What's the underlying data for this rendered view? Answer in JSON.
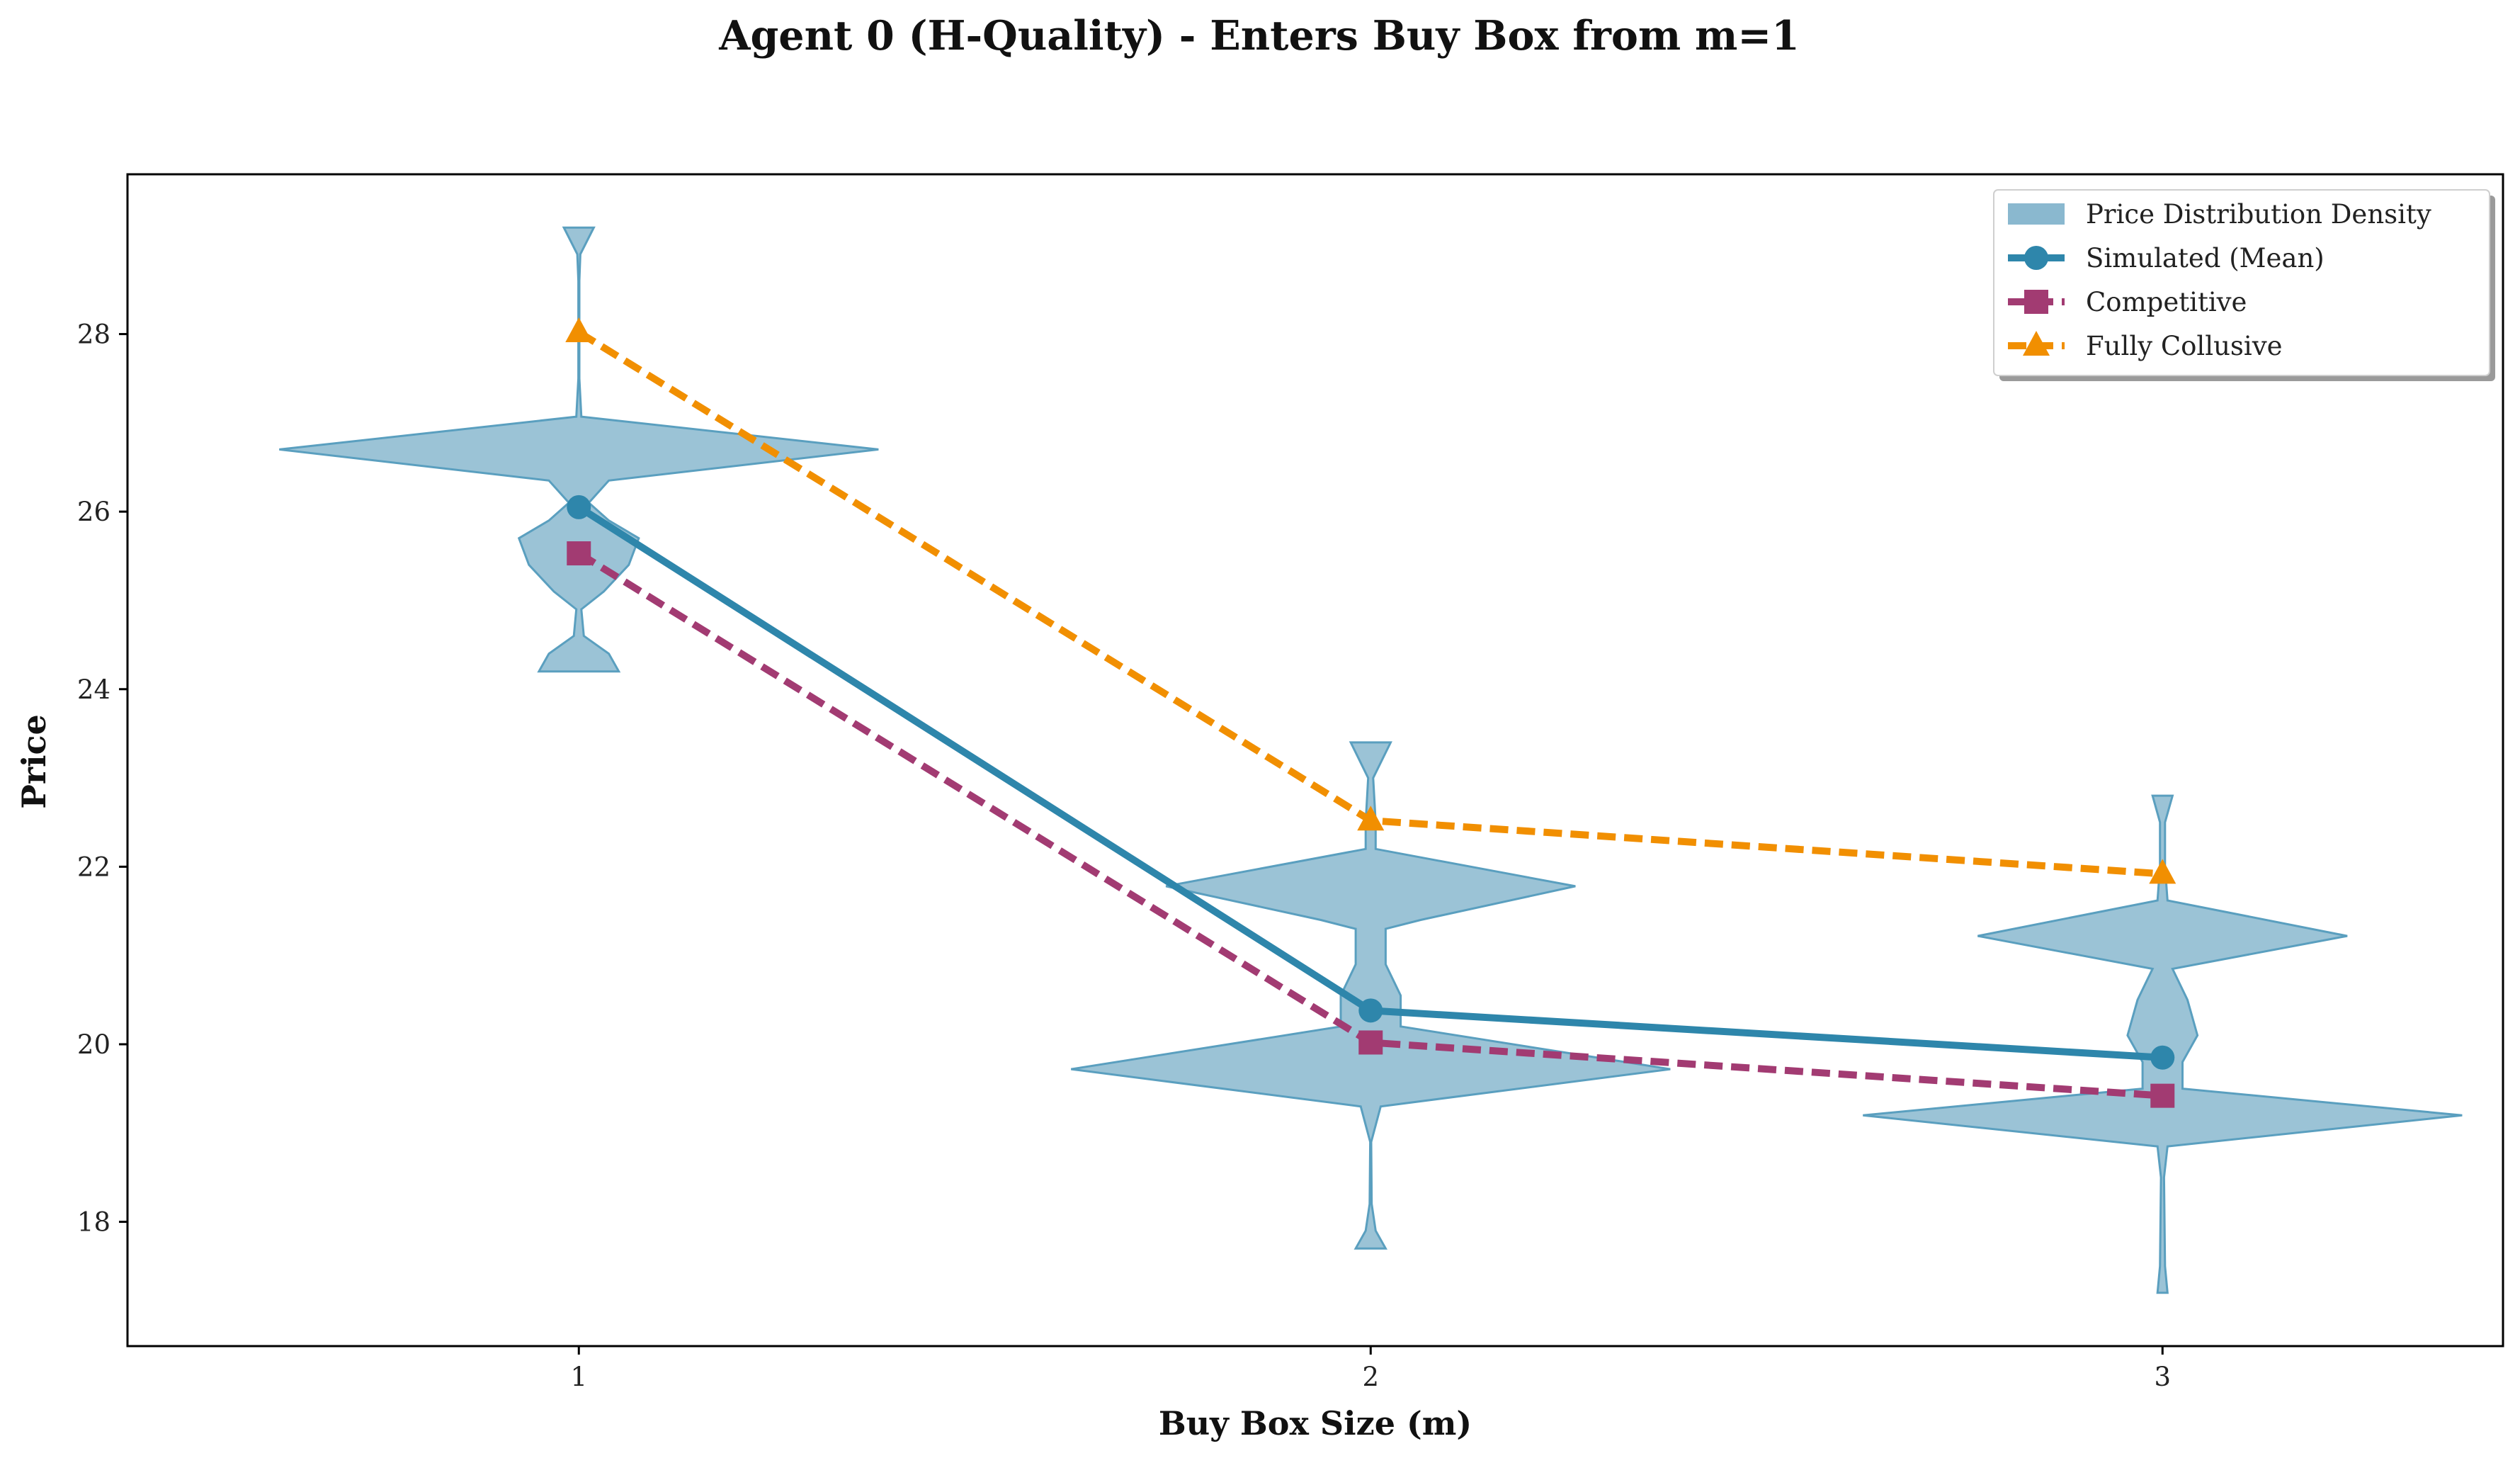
{
  "chart_data": {
    "type": "line",
    "title": "Agent 0 (H-Quality) - Enters Buy Box from m=1",
    "xlabel": "Buy Box Size (m)",
    "ylabel": "Price",
    "x": [
      1,
      2,
      3
    ],
    "x_tick_labels": [
      "1",
      "2",
      "3"
    ],
    "xlim": [
      0.43,
      3.43
    ],
    "ylim": [
      16.6,
      29.8
    ],
    "y_ticks": [
      18,
      20,
      22,
      24,
      26,
      28
    ],
    "y_tick_labels": [
      "18",
      "20",
      "22",
      "24",
      "26",
      "28"
    ],
    "grid": false,
    "legend_position": "top-right",
    "series": [
      {
        "name": "Simulated (Mean)",
        "values": [
          26.05,
          20.38,
          19.85
        ],
        "color": "#2e86ab",
        "marker": "circle",
        "linestyle": "solid"
      },
      {
        "name": "Competitive",
        "values": [
          25.53,
          20.02,
          19.42
        ],
        "color": "#a23b72",
        "marker": "square",
        "linestyle": "dashed"
      },
      {
        "name": "Fully Collusive",
        "values": [
          28.02,
          22.52,
          21.92
        ],
        "color": "#f18f01",
        "marker": "triangle",
        "linestyle": "dashed"
      }
    ],
    "violins": {
      "name": "Price Distribution Density",
      "color": "#8ab8cf",
      "edge_color": "#5a9fbf",
      "items": [
        {
          "x": 1,
          "min": 24.2,
          "max": 29.2,
          "profile": [
            [
              24.2,
              0.08
            ],
            [
              24.4,
              0.06
            ],
            [
              24.6,
              0.01
            ],
            [
              24.9,
              0.005
            ],
            [
              25.1,
              0.05
            ],
            [
              25.4,
              0.1
            ],
            [
              25.7,
              0.12
            ],
            [
              25.9,
              0.06
            ],
            [
              26.1,
              0.02
            ],
            [
              26.35,
              0.06
            ],
            [
              26.7,
              0.6
            ],
            [
              27.07,
              0.005
            ],
            [
              27.5,
              0.001
            ],
            [
              28.6,
              0.001
            ],
            [
              28.9,
              0.003
            ],
            [
              29.2,
              0.03
            ]
          ]
        },
        {
          "x": 2,
          "min": 17.7,
          "max": 23.4,
          "profile": [
            [
              17.7,
              0.03
            ],
            [
              17.9,
              0.01
            ],
            [
              18.2,
              0.002
            ],
            [
              18.9,
              0.001
            ],
            [
              19.3,
              0.02
            ],
            [
              19.72,
              0.6
            ],
            [
              20.2,
              0.06
            ],
            [
              20.55,
              0.06
            ],
            [
              20.9,
              0.03
            ],
            [
              21.3,
              0.03
            ],
            [
              21.4,
              0.1
            ],
            [
              21.78,
              0.41
            ],
            [
              22.2,
              0.01
            ],
            [
              22.5,
              0.01
            ],
            [
              23.0,
              0.005
            ],
            [
              23.4,
              0.04
            ]
          ]
        },
        {
          "x": 3,
          "min": 17.2,
          "max": 22.8,
          "profile": [
            [
              17.2,
              0.01
            ],
            [
              17.5,
              0.005
            ],
            [
              18.5,
              0.003
            ],
            [
              18.85,
              0.01
            ],
            [
              19.2,
              0.6
            ],
            [
              19.5,
              0.04
            ],
            [
              19.8,
              0.04
            ],
            [
              20.1,
              0.07
            ],
            [
              20.5,
              0.05
            ],
            [
              20.85,
              0.02
            ],
            [
              21.22,
              0.37
            ],
            [
              21.62,
              0.01
            ],
            [
              22.0,
              0.005
            ],
            [
              22.5,
              0.005
            ],
            [
              22.8,
              0.02
            ]
          ]
        }
      ]
    }
  }
}
